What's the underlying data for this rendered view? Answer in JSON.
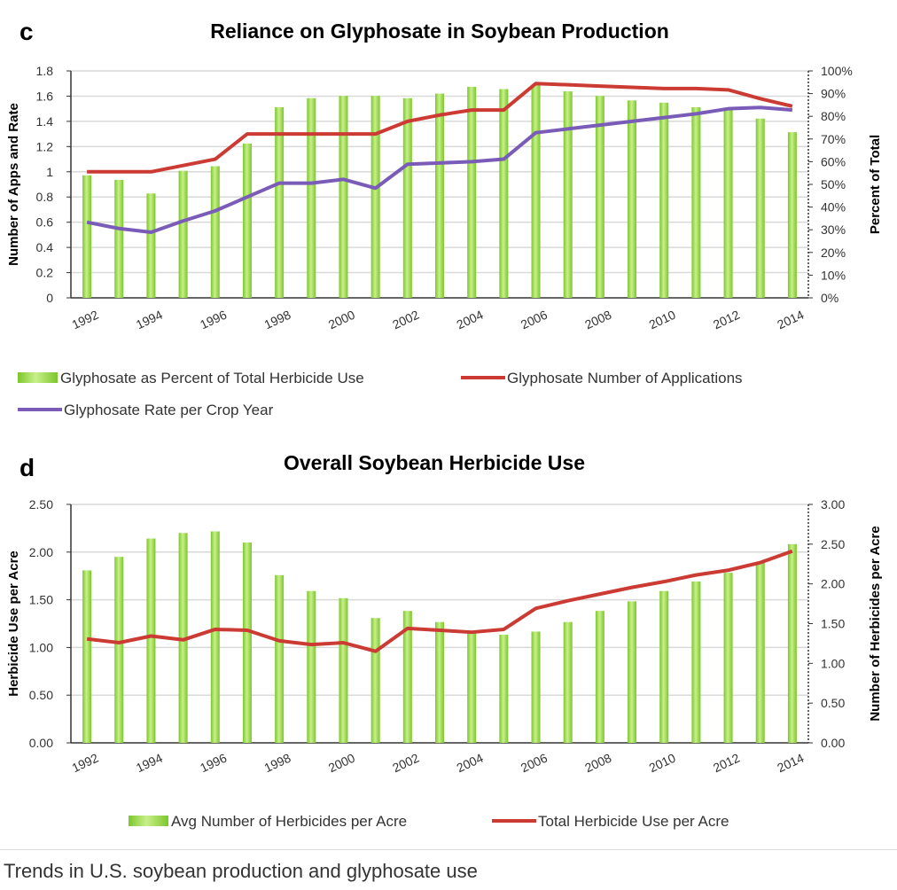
{
  "caption": "Trends in U.S. soybean production and glyphosate use",
  "colors": {
    "bar": "#7cc62c",
    "bar_light": "#c8f08a",
    "red_line": "#cc3b33",
    "purple_line": "#7a5cb8",
    "grid": "#d9d9d9"
  },
  "chart_data": [
    {
      "panel": "c",
      "type": "bar+line",
      "title": "Reliance on Glyphosate in Soybean Production",
      "ylabel": "Number of Apps and Rate",
      "y2label": "Percent  of Total",
      "ylim": [
        0,
        1.8
      ],
      "y2lim": [
        0,
        100
      ],
      "yticks": [
        "0",
        "0.2",
        "0.4",
        "0.6",
        "0.8",
        "1",
        "1.2",
        "1.4",
        "1.6",
        "1.8"
      ],
      "y2ticks": [
        "0%",
        "10%",
        "20%",
        "30%",
        "40%",
        "50%",
        "60%",
        "70%",
        "80%",
        "90%",
        "100%"
      ],
      "x": [
        1992,
        1993,
        1994,
        1995,
        1996,
        1997,
        1998,
        1999,
        2000,
        2001,
        2002,
        2003,
        2004,
        2005,
        2006,
        2007,
        2008,
        2009,
        2010,
        2011,
        2012,
        2013,
        2014
      ],
      "xticks": [
        "1992",
        "1994",
        "1996",
        "1998",
        "2000",
        "2002",
        "2004",
        "2006",
        "2008",
        "2010",
        "2012",
        "2014"
      ],
      "grid": true,
      "legend_position": "bottom",
      "series": [
        {
          "name": "Glyphosate as Percent of Total Herbicide Use",
          "kind": "bar",
          "axis": "right",
          "values": [
            54,
            52,
            46,
            56,
            58,
            68,
            84,
            88,
            89,
            89,
            88,
            90,
            93,
            92,
            94,
            91,
            89,
            87,
            86,
            84,
            83,
            79,
            73
          ]
        },
        {
          "name": "Glyphosate Number of Applications",
          "kind": "line",
          "axis": "left",
          "values": [
            1.0,
            1.0,
            1.0,
            1.05,
            1.1,
            1.3,
            1.3,
            1.3,
            1.3,
            1.3,
            1.4,
            1.45,
            1.49,
            1.49,
            1.7,
            1.69,
            1.68,
            1.67,
            1.66,
            1.66,
            1.65,
            1.58,
            1.52
          ]
        },
        {
          "name": "Glyphosate Rate per Crop Year",
          "kind": "line",
          "axis": "left",
          "values": [
            0.6,
            0.55,
            0.52,
            0.61,
            0.69,
            0.8,
            0.91,
            0.91,
            0.94,
            0.87,
            1.06,
            1.07,
            1.08,
            1.1,
            1.31,
            1.34,
            1.37,
            1.4,
            1.43,
            1.46,
            1.5,
            1.51,
            1.49
          ]
        }
      ]
    },
    {
      "panel": "d",
      "type": "bar+line",
      "title": "Overall Soybean Herbicide Use",
      "ylabel": "Herbicide Use per Acre",
      "y2label": "Number of Herbicides per Acre",
      "ylim": [
        0,
        2.5
      ],
      "y2lim": [
        0,
        3.0
      ],
      "yticks": [
        "0.00",
        "0.50",
        "1.00",
        "1.50",
        "2.00",
        "2.50"
      ],
      "y2ticks": [
        "0.00",
        "0.50",
        "1.00",
        "1.50",
        "2.00",
        "2.50",
        "3.00"
      ],
      "x": [
        1992,
        1993,
        1994,
        1995,
        1996,
        1997,
        1998,
        1999,
        2000,
        2001,
        2002,
        2003,
        2004,
        2005,
        2006,
        2007,
        2008,
        2009,
        2010,
        2011,
        2012,
        2013,
        2014
      ],
      "xticks": [
        "1992",
        "1994",
        "1996",
        "1998",
        "2000",
        "2002",
        "2004",
        "2006",
        "2008",
        "2010",
        "2012",
        "2014"
      ],
      "grid": true,
      "legend_position": "bottom",
      "series": [
        {
          "name": "Avg Number of Herbicides per Acre",
          "kind": "bar",
          "axis": "right",
          "values": [
            2.17,
            2.34,
            2.57,
            2.64,
            2.66,
            2.52,
            2.11,
            1.91,
            1.82,
            1.57,
            1.66,
            1.52,
            1.39,
            1.36,
            1.4,
            1.52,
            1.66,
            1.78,
            1.91,
            2.03,
            2.14,
            2.28,
            2.5
          ]
        },
        {
          "name": "Total Herbicide Use per Acre",
          "kind": "line",
          "axis": "left",
          "values": [
            1.09,
            1.05,
            1.12,
            1.08,
            1.19,
            1.18,
            1.07,
            1.03,
            1.05,
            0.96,
            1.2,
            1.18,
            1.16,
            1.19,
            1.41,
            1.49,
            1.56,
            1.63,
            1.69,
            1.76,
            1.81,
            1.89,
            2.01
          ]
        }
      ]
    }
  ]
}
